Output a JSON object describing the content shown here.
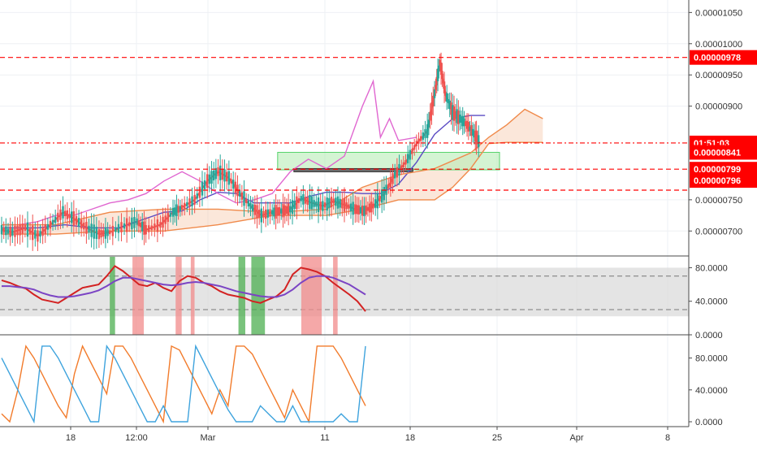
{
  "chart_data": [
    {
      "type": "candlestick",
      "panel": "price",
      "ylim": [
        6.6e-06,
        1.07e-05
      ],
      "y_ticks": [
        "0.00001050",
        "0.00001000",
        "0.00000950",
        "0.00000900",
        "0.00000750",
        "0.00000700"
      ],
      "y_tick_values": [
        1.05e-05,
        1e-05,
        9.5e-06,
        9e-06,
        7.5e-06,
        7e-06
      ],
      "price_tags": [
        {
          "label": "0.00000978",
          "value": 9.78e-06,
          "color": "#ff0000",
          "line": "dashed"
        },
        {
          "label": "01:51:03",
          "value": 8.41e-06,
          "color": "#ff0000",
          "line": "dashdot"
        },
        {
          "label": "0.00000841",
          "value": 8.26e-06,
          "color": "#ff0000",
          "line": "none"
        },
        {
          "label": "0.00000799",
          "value": 7.99e-06,
          "color": "#ff0000",
          "line": "dashed"
        },
        {
          "label": "0.00000796",
          "value": 7.81e-06,
          "color": "#ff0000",
          "line": "dashed-lower"
        }
      ],
      "series": [
        {
          "name": "close",
          "color": "#ef5350",
          "points": [
            [
              0,
              7.02
            ],
            [
              0.6,
              6.98
            ],
            [
              1.3,
              7.05
            ],
            [
              2,
              6.92
            ],
            [
              2.7,
              7.1
            ],
            [
              3.4,
              7.3
            ],
            [
              4,
              7.2
            ],
            [
              4.7,
              7.05
            ],
            [
              5.4,
              6.95
            ],
            [
              6,
              6.98
            ],
            [
              6.8,
              7.08
            ],
            [
              7.5,
              7.15
            ],
            [
              8,
              7.02
            ],
            [
              8.8,
              7.1
            ],
            [
              9.5,
              7.3
            ],
            [
              10,
              7.38
            ],
            [
              10.7,
              7.5
            ],
            [
              11.4,
              7.8
            ],
            [
              12,
              7.95
            ],
            [
              12.6,
              7.85
            ],
            [
              13.2,
              7.6
            ],
            [
              13.8,
              7.4
            ],
            [
              14.4,
              7.25
            ],
            [
              15,
              7.3
            ],
            [
              15.5,
              7.32
            ],
            [
              16,
              7.35
            ],
            [
              16.6,
              7.52
            ],
            [
              17.2,
              7.45
            ],
            [
              17.8,
              7.4
            ],
            [
              18.4,
              7.48
            ],
            [
              19,
              7.42
            ],
            [
              19.6,
              7.35
            ],
            [
              20.1,
              7.32
            ],
            [
              20.6,
              7.4
            ],
            [
              21.2,
              7.6
            ],
            [
              21.8,
              7.9
            ],
            [
              22.4,
              8.1
            ],
            [
              23,
              8.4
            ],
            [
              23.6,
              8.6
            ],
            [
              24,
              9.2
            ],
            [
              24.3,
              9.7
            ],
            [
              24.6,
              9.2
            ],
            [
              25,
              8.9
            ],
            [
              25.4,
              8.8
            ],
            [
              25.8,
              8.7
            ],
            [
              26.2,
              8.55
            ],
            [
              26.5,
              8.41
            ]
          ]
        },
        {
          "name": "base-line",
          "color": "#5b4bc4",
          "points": [
            [
              0,
              7.05
            ],
            [
              2,
              7.05
            ],
            [
              3.5,
              7.1
            ],
            [
              5,
              7.05
            ],
            [
              6.5,
              7.05
            ],
            [
              8,
              7.2
            ],
            [
              9,
              7.3
            ],
            [
              10,
              7.32
            ],
            [
              11,
              7.5
            ],
            [
              12,
              7.62
            ],
            [
              13,
              7.6
            ],
            [
              14,
              7.45
            ],
            [
              15,
              7.45
            ],
            [
              16,
              7.45
            ],
            [
              17,
              7.55
            ],
            [
              18,
              7.62
            ],
            [
              19,
              7.62
            ],
            [
              20,
              7.6
            ],
            [
              21,
              7.6
            ],
            [
              22,
              7.75
            ],
            [
              23,
              8.1
            ],
            [
              24,
              8.55
            ],
            [
              25,
              8.8
            ],
            [
              26,
              8.85
            ],
            [
              26.8,
              8.85
            ]
          ]
        },
        {
          "name": "lagging-span",
          "color": "#e066d0",
          "points": [
            [
              0,
              7.1
            ],
            [
              1,
              7.1
            ],
            [
              2,
              7.15
            ],
            [
              3,
              7.25
            ],
            [
              4,
              7.25
            ],
            [
              5,
              7.35
            ],
            [
              6,
              7.45
            ],
            [
              7,
              7.5
            ],
            [
              8,
              7.6
            ],
            [
              9,
              7.8
            ],
            [
              10,
              7.95
            ],
            [
              11,
              7.8
            ],
            [
              12,
              7.6
            ],
            [
              13,
              7.45
            ],
            [
              14,
              7.5
            ],
            [
              15,
              7.6
            ],
            [
              16,
              7.95
            ],
            [
              17,
              8.15
            ],
            [
              18,
              8.0
            ],
            [
              19,
              8.2
            ],
            [
              20,
              9.0
            ],
            [
              20.6,
              9.4
            ],
            [
              21,
              8.5
            ],
            [
              21.5,
              8.8
            ],
            [
              22,
              8.45
            ],
            [
              23,
              8.5
            ]
          ]
        },
        {
          "name": "cloud-upper",
          "color": "#f08a4b",
          "points": [
            [
              0,
              7.1
            ],
            [
              3,
              7.1
            ],
            [
              6,
              7.3
            ],
            [
              9,
              7.35
            ],
            [
              12,
              7.35
            ],
            [
              15,
              7.3
            ],
            [
              18,
              7.35
            ],
            [
              20,
              7.7
            ],
            [
              22,
              7.9
            ],
            [
              24,
              8.0
            ],
            [
              26,
              8.25
            ],
            [
              27,
              8.5
            ],
            [
              28,
              8.7
            ],
            [
              29,
              8.95
            ],
            [
              30,
              8.8
            ]
          ]
        },
        {
          "name": "cloud-lower",
          "color": "#f08a4b",
          "points": [
            [
              0,
              6.95
            ],
            [
              3,
              6.95
            ],
            [
              6,
              7.0
            ],
            [
              9,
              7.0
            ],
            [
              12,
              7.1
            ],
            [
              15,
              7.25
            ],
            [
              18,
              7.25
            ],
            [
              20,
              7.35
            ],
            [
              22,
              7.5
            ],
            [
              24,
              7.5
            ],
            [
              25,
              7.7
            ],
            [
              26,
              8.0
            ],
            [
              27,
              8.4
            ],
            [
              28,
              8.42
            ],
            [
              30,
              8.42
            ]
          ]
        }
      ]
    },
    {
      "type": "line",
      "panel": "oscillator-1",
      "ylim": [
        0,
        93
      ],
      "y_ticks": [
        "80.0000",
        "40.0000",
        "0.0000"
      ],
      "y_tick_values": [
        80,
        40,
        0
      ],
      "band": [
        22,
        80
      ],
      "series": [
        {
          "name": "fast",
          "color": "#d32222",
          "values": [
            65,
            62,
            58,
            55,
            48,
            42,
            40,
            38,
            44,
            50,
            56,
            58,
            60,
            70,
            82,
            76,
            68,
            60,
            58,
            62,
            56,
            52,
            64,
            70,
            68,
            62,
            58,
            52,
            48,
            46,
            44,
            40,
            38,
            42,
            46,
            54,
            72,
            80,
            78,
            75,
            70,
            62,
            55,
            48,
            40,
            28
          ]
        },
        {
          "name": "slow",
          "color": "#7b44c4",
          "values": [
            58,
            58,
            57,
            56,
            54,
            50,
            47,
            45,
            45,
            46,
            48,
            50,
            53,
            58,
            64,
            68,
            68,
            66,
            64,
            62,
            60,
            59,
            60,
            62,
            63,
            62,
            60,
            58,
            55,
            52,
            50,
            48,
            46,
            45,
            45,
            48,
            54,
            62,
            68,
            70,
            70,
            68,
            64,
            60,
            54,
            48
          ]
        }
      ],
      "highlight_bars": [
        {
          "start": 0.145,
          "end": 0.152,
          "color": "#4caf50"
        },
        {
          "start": 0.175,
          "end": 0.19,
          "color": "#f28b8b"
        },
        {
          "start": 0.232,
          "end": 0.24,
          "color": "#f28b8b"
        },
        {
          "start": 0.252,
          "end": 0.257,
          "color": "#f28b8b"
        },
        {
          "start": 0.315,
          "end": 0.324,
          "color": "#4caf50"
        },
        {
          "start": 0.332,
          "end": 0.35,
          "color": "#4caf50"
        },
        {
          "start": 0.398,
          "end": 0.425,
          "color": "#f28b8b"
        },
        {
          "start": 0.44,
          "end": 0.446,
          "color": "#f28b8b"
        }
      ]
    },
    {
      "type": "line",
      "panel": "oscillator-2",
      "ylim": [
        0,
        100
      ],
      "y_ticks": [
        "80.0000",
        "40.0000",
        "0.0000"
      ],
      "y_tick_values": [
        80,
        40,
        0
      ],
      "series": [
        {
          "name": "aroon-up",
          "color": "#f27b2b",
          "values": [
            10,
            0,
            40,
            95,
            80,
            60,
            40,
            20,
            5,
            60,
            95,
            75,
            55,
            35,
            95,
            95,
            80,
            60,
            40,
            20,
            0,
            95,
            90,
            70,
            50,
            30,
            10,
            40,
            20,
            95,
            95,
            85,
            65,
            45,
            25,
            5,
            40,
            20,
            0,
            95,
            95,
            95,
            80,
            60,
            40,
            20
          ]
        },
        {
          "name": "aroon-down",
          "color": "#3ea3dd",
          "values": [
            80,
            60,
            40,
            20,
            0,
            95,
            95,
            80,
            60,
            40,
            20,
            0,
            0,
            95,
            80,
            60,
            40,
            20,
            0,
            0,
            20,
            0,
            0,
            0,
            95,
            75,
            55,
            35,
            15,
            0,
            0,
            0,
            20,
            10,
            0,
            0,
            20,
            0,
            0,
            0,
            0,
            0,
            10,
            0,
            0,
            95
          ]
        }
      ]
    }
  ],
  "x_axis": {
    "labels": [
      "18",
      "12:00",
      "Mar",
      "11",
      "18",
      "25",
      "Apr",
      "8"
    ]
  }
}
